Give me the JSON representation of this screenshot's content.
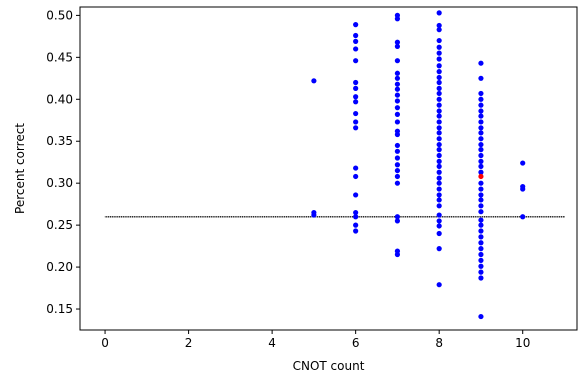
{
  "chart_data": {
    "type": "scatter",
    "title": "",
    "xlabel": "CNOT count",
    "ylabel": "Percent correct",
    "xlim": [
      -0.6,
      11.3
    ],
    "ylim": [
      0.125,
      0.51
    ],
    "xticks": [
      0,
      2,
      4,
      6,
      8,
      10
    ],
    "xtick_labels": [
      "0",
      "2",
      "4",
      "6",
      "8",
      "10"
    ],
    "yticks": [
      0.15,
      0.2,
      0.25,
      0.3,
      0.35,
      0.4,
      0.45,
      0.5
    ],
    "ytick_labels": [
      "0.15",
      "0.20",
      "0.25",
      "0.30",
      "0.35",
      "0.40",
      "0.45",
      "0.50"
    ],
    "grid": false,
    "baseline": {
      "y": 0.26,
      "x_range": [
        0,
        11
      ],
      "color": "#000000",
      "marker_color": "#c8c8c8",
      "style": "dotted-markers"
    },
    "series": [
      {
        "color": "#0000ff",
        "points": [
          {
            "x": 5,
            "y": 0.422
          },
          {
            "x": 5,
            "y": 0.265
          },
          {
            "x": 5,
            "y": 0.262
          },
          {
            "x": 6,
            "y": 0.489
          },
          {
            "x": 6,
            "y": 0.476
          },
          {
            "x": 6,
            "y": 0.469
          },
          {
            "x": 6,
            "y": 0.46
          },
          {
            "x": 6,
            "y": 0.446
          },
          {
            "x": 6,
            "y": 0.42
          },
          {
            "x": 6,
            "y": 0.413
          },
          {
            "x": 6,
            "y": 0.403
          },
          {
            "x": 6,
            "y": 0.397
          },
          {
            "x": 6,
            "y": 0.383
          },
          {
            "x": 6,
            "y": 0.373
          },
          {
            "x": 6,
            "y": 0.366
          },
          {
            "x": 6,
            "y": 0.318
          },
          {
            "x": 6,
            "y": 0.308
          },
          {
            "x": 6,
            "y": 0.286
          },
          {
            "x": 6,
            "y": 0.265
          },
          {
            "x": 6,
            "y": 0.26
          },
          {
            "x": 6,
            "y": 0.25
          },
          {
            "x": 6,
            "y": 0.243
          },
          {
            "x": 7,
            "y": 0.5
          },
          {
            "x": 7,
            "y": 0.496
          },
          {
            "x": 7,
            "y": 0.468
          },
          {
            "x": 7,
            "y": 0.463
          },
          {
            "x": 7,
            "y": 0.446
          },
          {
            "x": 7,
            "y": 0.431
          },
          {
            "x": 7,
            "y": 0.425
          },
          {
            "x": 7,
            "y": 0.418
          },
          {
            "x": 7,
            "y": 0.412
          },
          {
            "x": 7,
            "y": 0.405
          },
          {
            "x": 7,
            "y": 0.398
          },
          {
            "x": 7,
            "y": 0.39
          },
          {
            "x": 7,
            "y": 0.382
          },
          {
            "x": 7,
            "y": 0.373
          },
          {
            "x": 7,
            "y": 0.362
          },
          {
            "x": 7,
            "y": 0.358
          },
          {
            "x": 7,
            "y": 0.345
          },
          {
            "x": 7,
            "y": 0.338
          },
          {
            "x": 7,
            "y": 0.33
          },
          {
            "x": 7,
            "y": 0.322
          },
          {
            "x": 7,
            "y": 0.315
          },
          {
            "x": 7,
            "y": 0.308
          },
          {
            "x": 7,
            "y": 0.3
          },
          {
            "x": 7,
            "y": 0.26
          },
          {
            "x": 7,
            "y": 0.255
          },
          {
            "x": 7,
            "y": 0.219
          },
          {
            "x": 7,
            "y": 0.215
          },
          {
            "x": 8,
            "y": 0.503
          },
          {
            "x": 8,
            "y": 0.488
          },
          {
            "x": 8,
            "y": 0.483
          },
          {
            "x": 8,
            "y": 0.47
          },
          {
            "x": 8,
            "y": 0.462
          },
          {
            "x": 8,
            "y": 0.455
          },
          {
            "x": 8,
            "y": 0.448
          },
          {
            "x": 8,
            "y": 0.44
          },
          {
            "x": 8,
            "y": 0.433
          },
          {
            "x": 8,
            "y": 0.426
          },
          {
            "x": 8,
            "y": 0.42
          },
          {
            "x": 8,
            "y": 0.413
          },
          {
            "x": 8,
            "y": 0.407
          },
          {
            "x": 8,
            "y": 0.4
          },
          {
            "x": 8,
            "y": 0.393
          },
          {
            "x": 8,
            "y": 0.386
          },
          {
            "x": 8,
            "y": 0.38
          },
          {
            "x": 8,
            "y": 0.373
          },
          {
            "x": 8,
            "y": 0.366
          },
          {
            "x": 8,
            "y": 0.36
          },
          {
            "x": 8,
            "y": 0.353
          },
          {
            "x": 8,
            "y": 0.346
          },
          {
            "x": 8,
            "y": 0.34
          },
          {
            "x": 8,
            "y": 0.333
          },
          {
            "x": 8,
            "y": 0.326
          },
          {
            "x": 8,
            "y": 0.32
          },
          {
            "x": 8,
            "y": 0.313
          },
          {
            "x": 8,
            "y": 0.306
          },
          {
            "x": 8,
            "y": 0.3
          },
          {
            "x": 8,
            "y": 0.293
          },
          {
            "x": 8,
            "y": 0.286
          },
          {
            "x": 8,
            "y": 0.28
          },
          {
            "x": 8,
            "y": 0.273
          },
          {
            "x": 8,
            "y": 0.262
          },
          {
            "x": 8,
            "y": 0.255
          },
          {
            "x": 8,
            "y": 0.249
          },
          {
            "x": 8,
            "y": 0.24
          },
          {
            "x": 8,
            "y": 0.222
          },
          {
            "x": 8,
            "y": 0.179
          },
          {
            "x": 9,
            "y": 0.443
          },
          {
            "x": 9,
            "y": 0.425
          },
          {
            "x": 9,
            "y": 0.407
          },
          {
            "x": 9,
            "y": 0.4
          },
          {
            "x": 9,
            "y": 0.393
          },
          {
            "x": 9,
            "y": 0.386
          },
          {
            "x": 9,
            "y": 0.38
          },
          {
            "x": 9,
            "y": 0.373
          },
          {
            "x": 9,
            "y": 0.366
          },
          {
            "x": 9,
            "y": 0.36
          },
          {
            "x": 9,
            "y": 0.353
          },
          {
            "x": 9,
            "y": 0.346
          },
          {
            "x": 9,
            "y": 0.34
          },
          {
            "x": 9,
            "y": 0.333
          },
          {
            "x": 9,
            "y": 0.326
          },
          {
            "x": 9,
            "y": 0.32
          },
          {
            "x": 9,
            "y": 0.313
          },
          {
            "x": 9,
            "y": 0.3
          },
          {
            "x": 9,
            "y": 0.293
          },
          {
            "x": 9,
            "y": 0.286
          },
          {
            "x": 9,
            "y": 0.28
          },
          {
            "x": 9,
            "y": 0.273
          },
          {
            "x": 9,
            "y": 0.266
          },
          {
            "x": 9,
            "y": 0.256
          },
          {
            "x": 9,
            "y": 0.25
          },
          {
            "x": 9,
            "y": 0.243
          },
          {
            "x": 9,
            "y": 0.236
          },
          {
            "x": 9,
            "y": 0.229
          },
          {
            "x": 9,
            "y": 0.222
          },
          {
            "x": 9,
            "y": 0.215
          },
          {
            "x": 9,
            "y": 0.208
          },
          {
            "x": 9,
            "y": 0.201
          },
          {
            "x": 9,
            "y": 0.194
          },
          {
            "x": 9,
            "y": 0.187
          },
          {
            "x": 9,
            "y": 0.141
          },
          {
            "x": 10,
            "y": 0.324
          },
          {
            "x": 10,
            "y": 0.296
          },
          {
            "x": 10,
            "y": 0.293
          },
          {
            "x": 10,
            "y": 0.26
          }
        ]
      },
      {
        "color": "#ff0000",
        "points": [
          {
            "x": 9,
            "y": 0.308
          }
        ]
      }
    ]
  }
}
